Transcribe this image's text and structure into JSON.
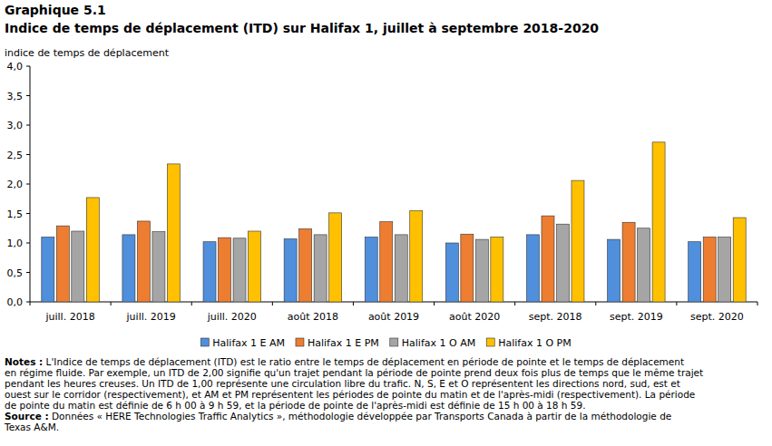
{
  "chart_data": {
    "type": "bar",
    "title": "Graphique 5.1",
    "subtitle": "Indice de temps de déplacement (ITD) sur Halifax 1, juillet à septembre 2018-2020",
    "y_label": "indice de temps de déplacement",
    "categories": [
      "juill. 2018",
      "juill. 2019",
      "juill. 2020",
      "août 2018",
      "août 2019",
      "août 2020",
      "sept. 2018",
      "sept. 2019",
      "sept. 2020"
    ],
    "series": [
      {
        "name": "Halifax 1 E AM",
        "color": "#4f8fdc",
        "values": [
          1.1,
          1.14,
          1.02,
          1.07,
          1.1,
          1.0,
          1.14,
          1.06,
          1.02
        ]
      },
      {
        "name": "Halifax 1 E PM",
        "color": "#ed7d31",
        "values": [
          1.29,
          1.37,
          1.09,
          1.24,
          1.36,
          1.15,
          1.46,
          1.35,
          1.1
        ]
      },
      {
        "name": "Halifax 1 O AM",
        "color": "#a5a5a5",
        "values": [
          1.2,
          1.19,
          1.08,
          1.14,
          1.14,
          1.06,
          1.32,
          1.25,
          1.1
        ]
      },
      {
        "name": "Halifax 1 O PM",
        "color": "#ffc000",
        "values": [
          1.77,
          2.34,
          1.2,
          1.51,
          1.55,
          1.1,
          2.06,
          2.71,
          1.43
        ]
      }
    ],
    "ylim": [
      0,
      4
    ],
    "yticks": [
      {
        "value": 0,
        "label": "0,0"
      },
      {
        "value": 0.5,
        "label": "0,5"
      },
      {
        "value": 1,
        "label": "1,0"
      },
      {
        "value": 1.5,
        "label": "1,5"
      },
      {
        "value": 2,
        "label": "2,0"
      },
      {
        "value": 2.5,
        "label": "2,5"
      },
      {
        "value": 3,
        "label": "3,0"
      },
      {
        "value": 3.5,
        "label": "3,5"
      },
      {
        "value": 4,
        "label": "4,0"
      }
    ],
    "grid": false,
    "legend": "bottom"
  },
  "notes": {
    "label": "Notes :",
    "lines": [
      "L'Indice de temps de déplacement (ITD) est le ratio  entre le temps de déplacement en période de pointe et le temps de déplacement",
      "en régime fluide. Par exemple, un ITD de 2,00 signifie qu'un trajet pendant la période de pointe prend deux fois plus de temps que le même trajet",
      "pendant les heures creuses. Un ITD de 1,00 représente une circulation libre du trafic. N, S, E et O représentent les directions nord, sud, est et",
      "ouest sur le corridor (respectivement), et AM et PM représentent les périodes de pointe du matin et de l'après-midi (respectivement). La période",
      "de pointe du matin est définie de 6 h 00 à 9 h 59, et la période de pointe de l'après-midi est définie de 15 h 00 à 18 h 59."
    ]
  },
  "source": {
    "label": "Source :",
    "lines": [
      "Données « HERE Technologies Traffic Analytics », méthodologie développée par Transports Canada à partir de la méthodologie de",
      "Texas A&M."
    ]
  }
}
